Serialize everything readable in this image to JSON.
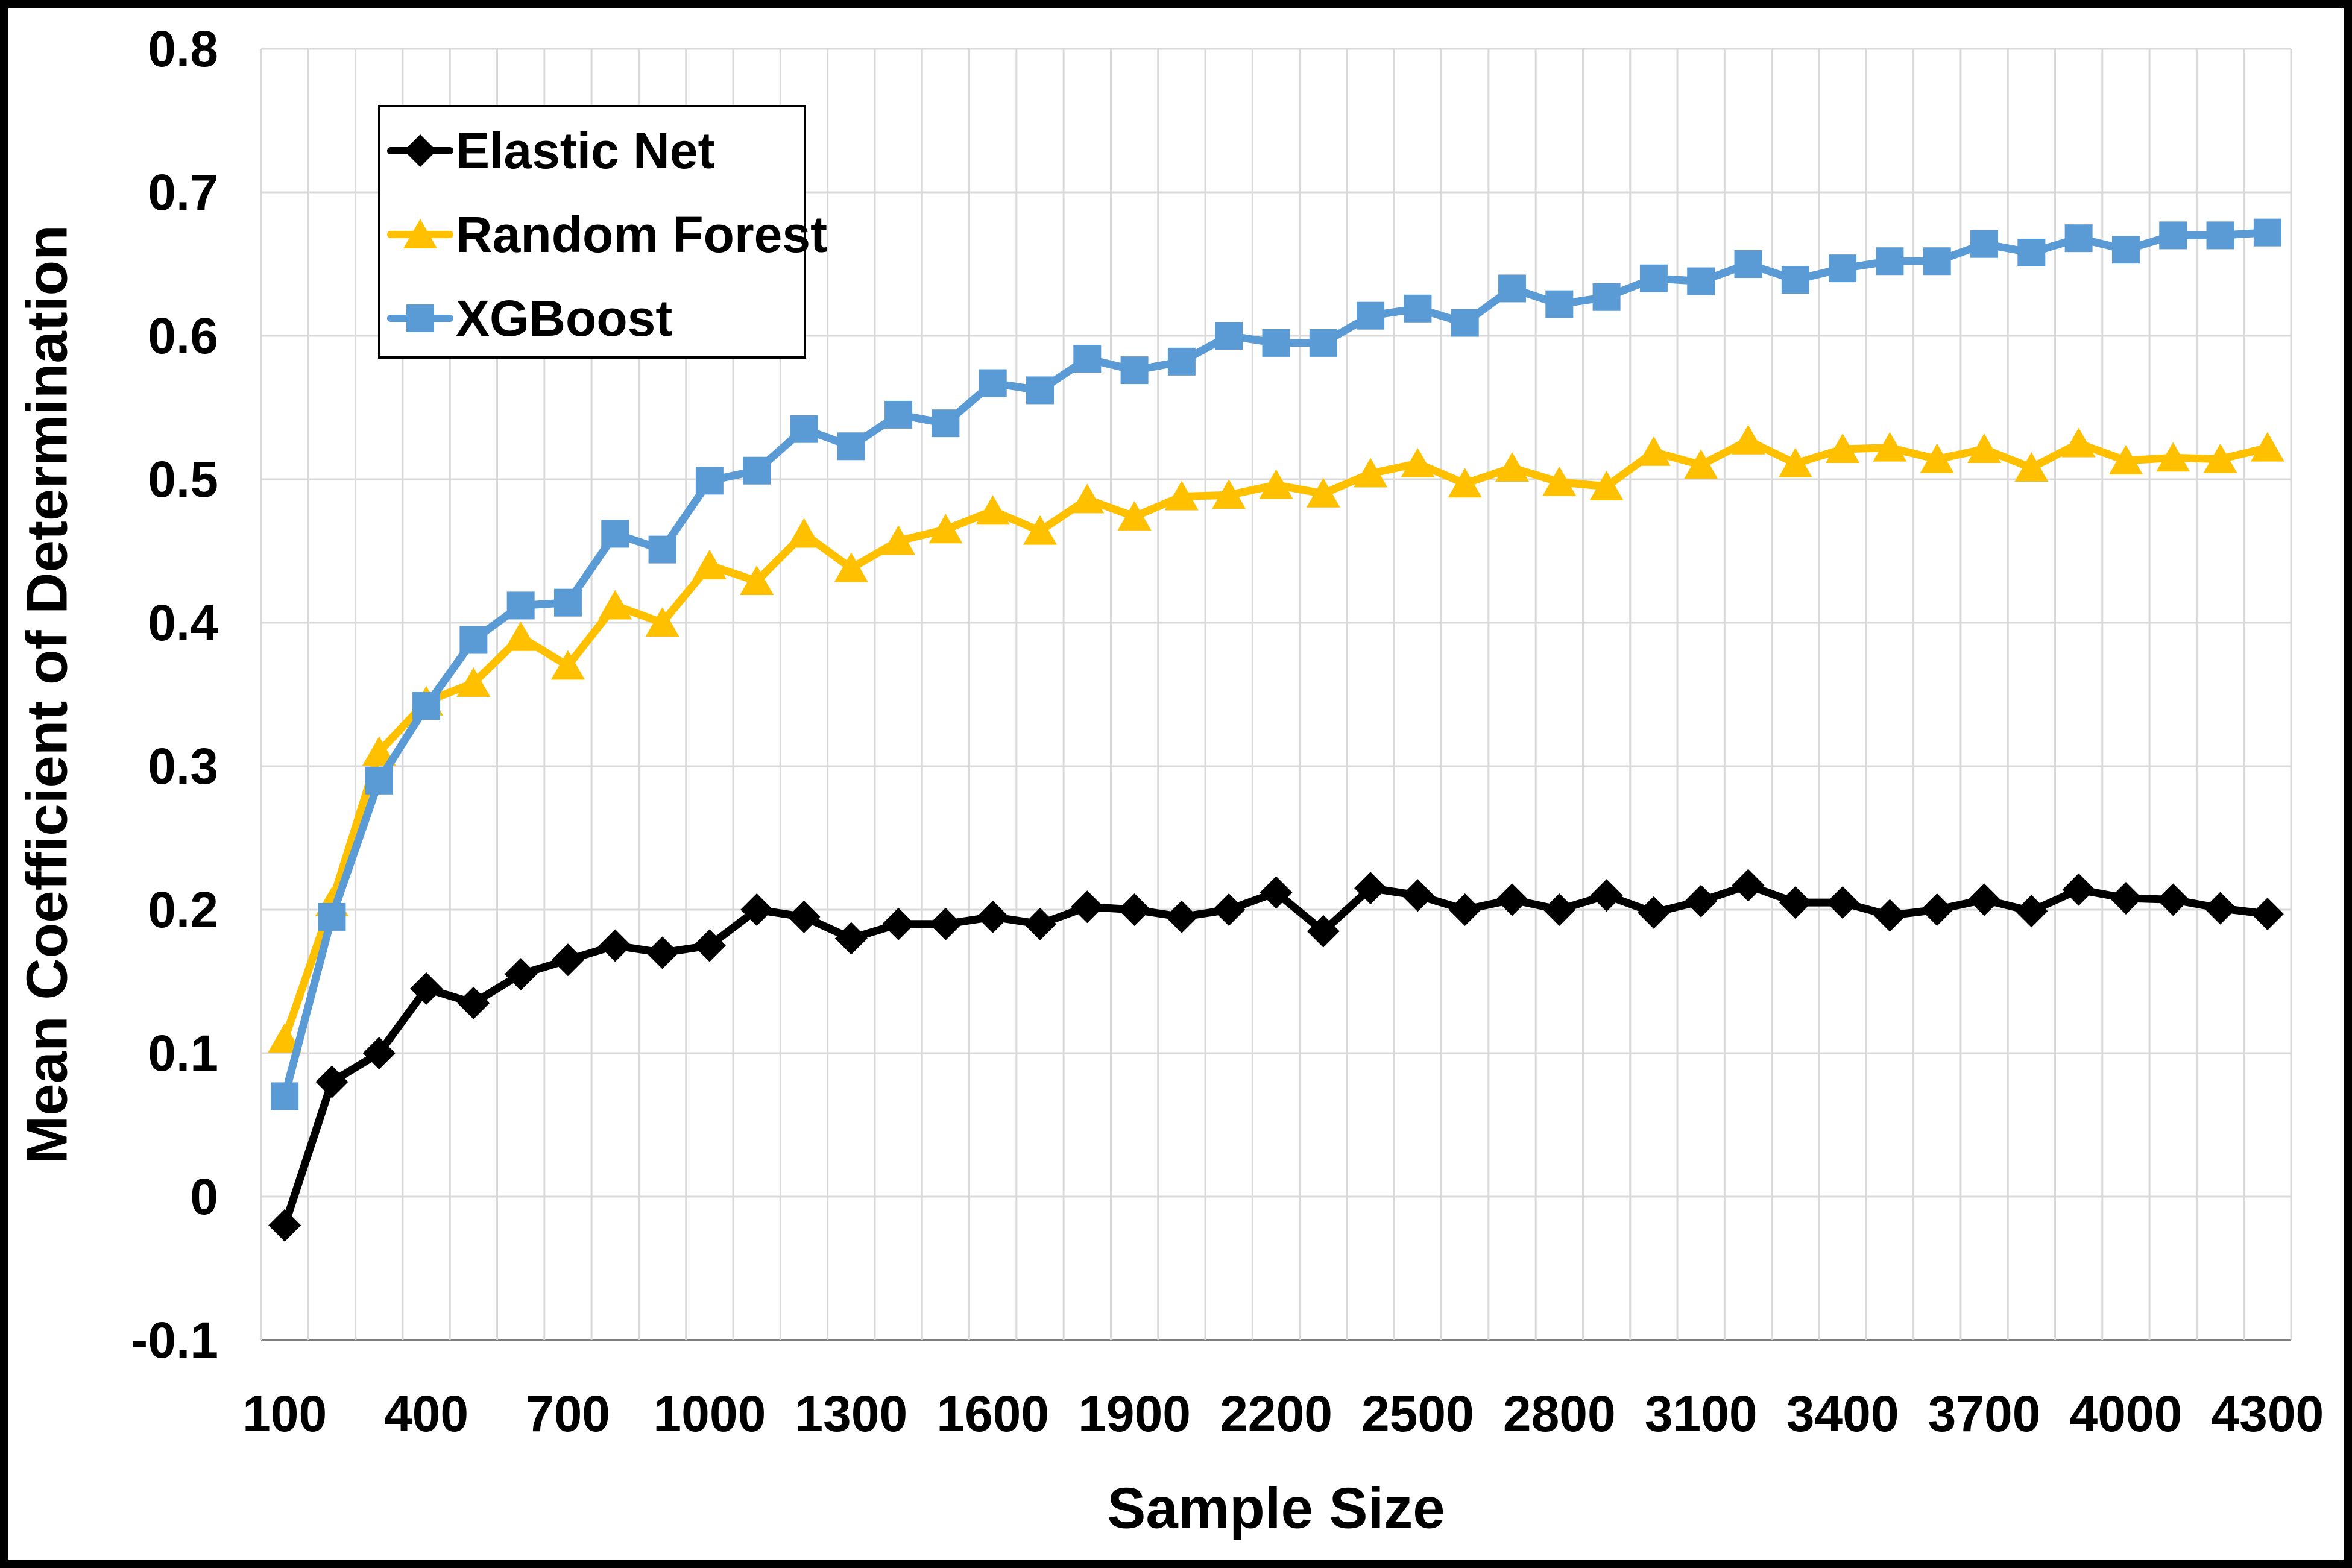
{
  "chart_data": {
    "type": "line",
    "title": "",
    "xlabel": "Sample Size",
    "ylabel": "Mean Coefficient of Determination",
    "x": [
      100,
      200,
      300,
      400,
      500,
      600,
      700,
      800,
      900,
      1000,
      1100,
      1200,
      1300,
      1400,
      1500,
      1600,
      1700,
      1800,
      1900,
      2000,
      2100,
      2200,
      2300,
      2400,
      2500,
      2600,
      2700,
      2800,
      2900,
      3000,
      3100,
      3200,
      3300,
      3400,
      3500,
      3600,
      3700,
      3800,
      3900,
      4000,
      4100,
      4200,
      4300
    ],
    "series": [
      {
        "name": "Elastic Net",
        "color": "#000000",
        "marker": "diamond",
        "values": [
          -0.02,
          0.08,
          0.1,
          0.145,
          0.135,
          0.155,
          0.165,
          0.175,
          0.17,
          0.175,
          0.2,
          0.195,
          0.18,
          0.19,
          0.19,
          0.195,
          0.19,
          0.202,
          0.2,
          0.195,
          0.2,
          0.212,
          0.185,
          0.215,
          0.21,
          0.2,
          0.207,
          0.2,
          0.21,
          0.198,
          0.206,
          0.217,
          0.205,
          0.205,
          0.196,
          0.2,
          0.207,
          0.199,
          0.214,
          0.208,
          0.207,
          0.201,
          0.197
        ]
      },
      {
        "name": "Random Forest",
        "color": "#FFC000",
        "marker": "triangle",
        "values": [
          0.11,
          0.205,
          0.31,
          0.345,
          0.358,
          0.39,
          0.37,
          0.412,
          0.4,
          0.44,
          0.429,
          0.462,
          0.438,
          0.457,
          0.465,
          0.478,
          0.464,
          0.486,
          0.474,
          0.488,
          0.489,
          0.496,
          0.49,
          0.504,
          0.511,
          0.497,
          0.508,
          0.498,
          0.495,
          0.519,
          0.51,
          0.527,
          0.511,
          0.521,
          0.522,
          0.514,
          0.521,
          0.508,
          0.525,
          0.513,
          0.515,
          0.514,
          0.522
        ]
      },
      {
        "name": "XGBoost",
        "color": "#5B9BD5",
        "marker": "square",
        "values": [
          0.07,
          0.195,
          0.29,
          0.342,
          0.388,
          0.412,
          0.414,
          0.462,
          0.451,
          0.499,
          0.506,
          0.535,
          0.523,
          0.545,
          0.539,
          0.567,
          0.562,
          0.584,
          0.576,
          0.582,
          0.6,
          0.595,
          0.595,
          0.614,
          0.619,
          0.609,
          0.633,
          0.622,
          0.627,
          0.64,
          0.638,
          0.65,
          0.639,
          0.647,
          0.652,
          0.652,
          0.664,
          0.658,
          0.668,
          0.66,
          0.67,
          0.67,
          0.672
        ]
      }
    ],
    "ylim": [
      -0.1,
      0.8
    ],
    "yticks": [
      0.8,
      0.7,
      0.6,
      0.5,
      0.4,
      0.3,
      0.2,
      0.1,
      0,
      -0.1
    ],
    "ytick_labels": [
      "0.8",
      "0.7",
      "0.6",
      "0.5",
      "0.4",
      "0.3",
      "0.2",
      "0.1",
      "0",
      "-0.1"
    ],
    "xtick_labels": [
      "100",
      "400",
      "700",
      "1000",
      "1300",
      "1600",
      "1900",
      "2200",
      "2500",
      "2800",
      "3100",
      "3400",
      "3700",
      "4000",
      "4300"
    ],
    "grid": true,
    "legend_position": "upper-left-inside",
    "colors": {
      "grid": "#D9D9D9",
      "axis": "#7F7F7F",
      "frame": "#000000",
      "background": "#FFFFFF"
    }
  }
}
